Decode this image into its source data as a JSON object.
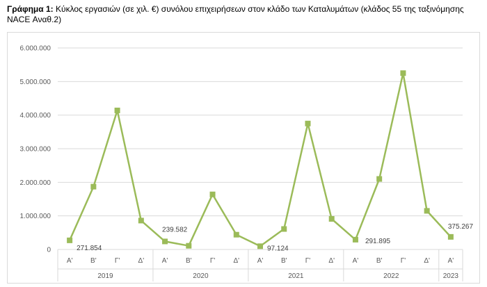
{
  "caption": {
    "label": "Γράφημα 1:",
    "text": "Κύκλος εργασιών (σε χιλ. €) συνόλου επιχειρήσεων στον κλάδο των Καταλυμάτων (κλάδος 55 της ταξινόμησης NACE Αναθ.2)"
  },
  "colors": {
    "series": "#9bbb59",
    "grid": "#d9d9d9",
    "axis_text": "#595959"
  },
  "chart_data": {
    "type": "line",
    "title": "",
    "xlabel": "",
    "ylabel": "",
    "ylim": [
      0,
      6000000
    ],
    "yticks": [
      0,
      1000000,
      2000000,
      3000000,
      4000000,
      5000000,
      6000000
    ],
    "ytick_labels": [
      "0",
      "1.000.000",
      "2.000.000",
      "3.000.000",
      "4.000.000",
      "5.000.000",
      "6.000.000"
    ],
    "grid": true,
    "legend": "none",
    "year_groups": [
      {
        "year": "2019",
        "quarters": [
          "Α'",
          "Β'",
          "Γ'",
          "Δ'"
        ]
      },
      {
        "year": "2020",
        "quarters": [
          "Α'",
          "Β'",
          "Γ'",
          "Δ'"
        ]
      },
      {
        "year": "2021",
        "quarters": [
          "Α'",
          "Β'",
          "Γ'",
          "Δ'"
        ]
      },
      {
        "year": "2022",
        "quarters": [
          "Α'",
          "Β'",
          "Γ'",
          "Δ'"
        ]
      },
      {
        "year": "2023",
        "quarters": [
          "Α'"
        ]
      }
    ],
    "series": [
      {
        "values": [
          271854,
          1870000,
          4140000,
          860000,
          239582,
          110000,
          1640000,
          440000,
          97124,
          610000,
          3750000,
          910000,
          291895,
          2100000,
          5250000,
          1150000,
          375267
        ]
      }
    ],
    "data_labels": [
      {
        "index": 0,
        "text": "271.854"
      },
      {
        "index": 4,
        "text": "239.582"
      },
      {
        "index": 8,
        "text": "97.124"
      },
      {
        "index": 12,
        "text": "291.895"
      },
      {
        "index": 16,
        "text": "375.267"
      }
    ]
  }
}
